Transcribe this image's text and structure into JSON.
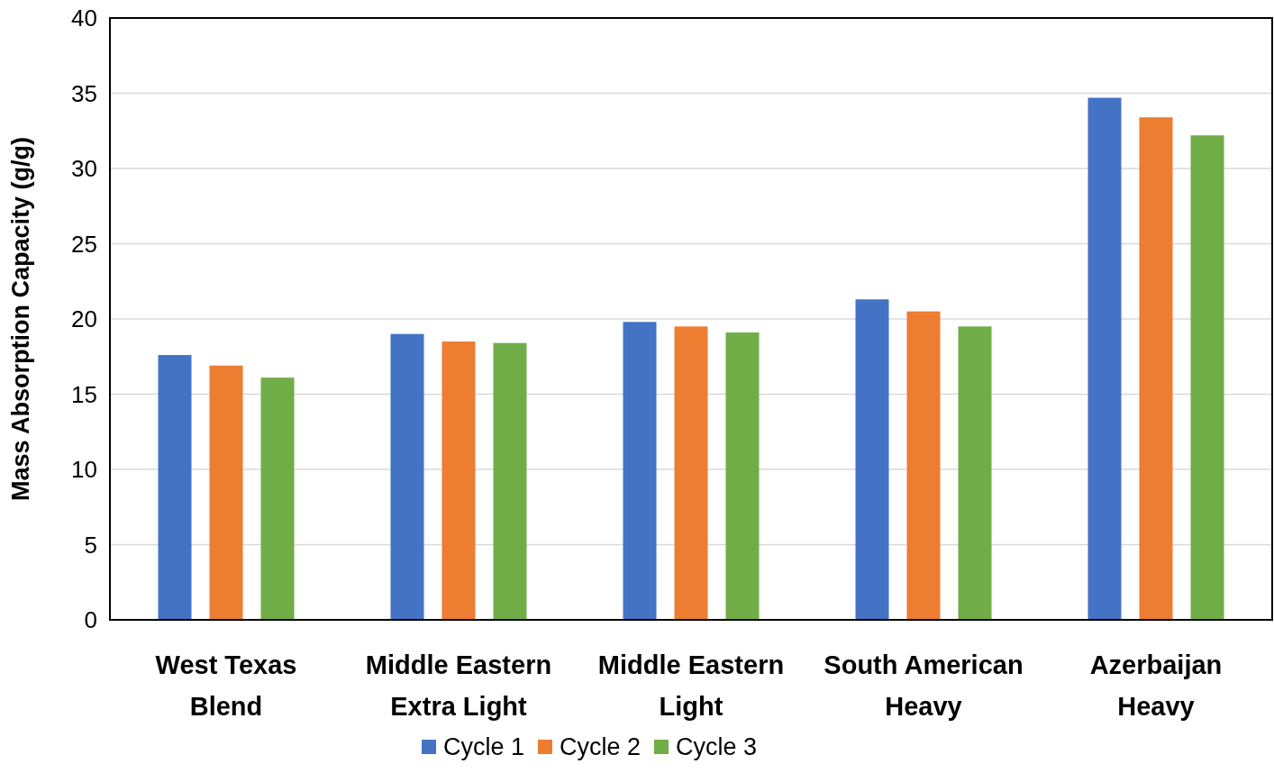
{
  "chart_data": {
    "type": "bar",
    "ylabel": "Mass Absorption Capacity (g/g)",
    "categories": [
      "West Texas Blend",
      "Middle Eastern Extra Light",
      "Middle Eastern Light",
      "South American Heavy",
      "Azerbaijan Heavy"
    ],
    "series": [
      {
        "name": "Cycle 1",
        "color": "#4472c4",
        "values": [
          17.6,
          19.0,
          19.8,
          21.3,
          34.7
        ]
      },
      {
        "name": "Cycle 2",
        "color": "#ed7d31",
        "values": [
          16.9,
          18.5,
          19.5,
          20.5,
          33.4
        ]
      },
      {
        "name": "Cycle 3",
        "color": "#70ad47",
        "values": [
          16.1,
          18.4,
          19.1,
          19.5,
          32.2
        ]
      }
    ],
    "ylim": [
      0,
      40
    ],
    "yticks": [
      0,
      5,
      10,
      15,
      20,
      25,
      30,
      35,
      40
    ],
    "grid": "y",
    "legend": "bottom"
  }
}
